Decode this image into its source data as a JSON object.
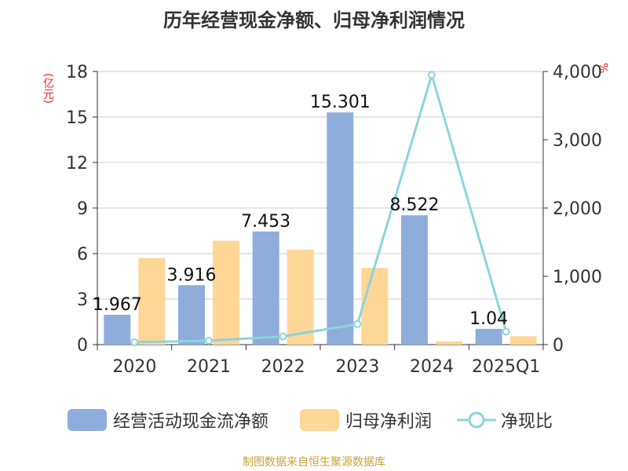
{
  "colors": {
    "bar1": "#8eadda",
    "bar2": "#fed696",
    "line": "#8dd4dc",
    "unit": "#e8232a",
    "source": "#c7a23d",
    "axis": "#333333",
    "grid": "#cccccc"
  },
  "chart_data": {
    "type": "bar",
    "title": "历年经营现金净额、归母净利润情况",
    "categories": [
      "2020",
      "2021",
      "2022",
      "2023",
      "2024",
      "2025Q1"
    ],
    "left_axis": {
      "unit": "(亿元)",
      "ylim": [
        0,
        18
      ],
      "ticks": [
        "0",
        "3",
        "6",
        "9",
        "12",
        "15",
        "18"
      ]
    },
    "right_axis": {
      "unit": "%",
      "ylim": [
        0,
        4000
      ],
      "ticks": [
        "0",
        "1,000",
        "2,000",
        "3,000",
        "4,000"
      ]
    },
    "series": [
      {
        "name": "经营活动现金流净额",
        "kind": "bar",
        "axis": "left",
        "values": [
          1.967,
          3.916,
          7.453,
          15.301,
          8.522,
          1.04
        ],
        "labels": [
          "1.967",
          "3.916",
          "7.453",
          "15.301",
          "8.522",
          "1.04"
        ]
      },
      {
        "name": "归母净利润",
        "kind": "bar",
        "axis": "left",
        "values": [
          5.7,
          6.85,
          6.25,
          5.05,
          0.22,
          0.55
        ]
      },
      {
        "name": "净现比",
        "kind": "line",
        "axis": "right",
        "values": [
          35,
          57,
          120,
          300,
          3950,
          190
        ]
      }
    ],
    "legend_position": "bottom",
    "grid": true
  },
  "source_text": "制图数据来自恒生聚源数据库"
}
